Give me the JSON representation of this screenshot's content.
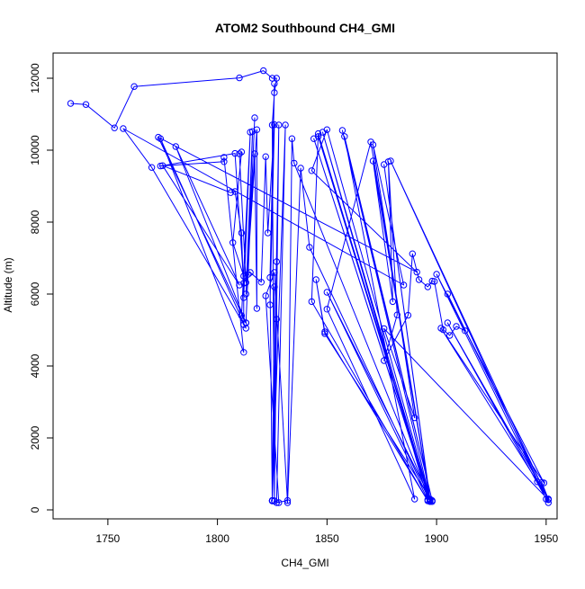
{
  "chart_data": {
    "type": "line",
    "title": "ATOM2 Southbound CH4_GMI",
    "xlabel": "CH4_GMI",
    "ylabel": "Altitude (m)",
    "xlim": [
      1725,
      1955
    ],
    "ylim": [
      -250,
      12700
    ],
    "x_ticks": [
      "1750",
      "1800",
      "1850",
      "1900",
      "1950"
    ],
    "y_ticks": [
      "0",
      "2000",
      "4000",
      "6000",
      "8000",
      "10000",
      "12000"
    ],
    "grid": false,
    "legend": "none",
    "colors": {
      "series": "#0000ff",
      "axis": "#000000",
      "background": "#ffffff"
    },
    "series": [
      {
        "style": "line+circle-markers",
        "points": [
          [
            1733,
            11300
          ],
          [
            1740,
            11270
          ],
          [
            1753,
            10620
          ],
          [
            1762,
            11770
          ],
          [
            1810,
            12010
          ],
          [
            1821,
            12210
          ],
          [
            1825,
            12000
          ],
          [
            1827,
            12000
          ],
          [
            1826,
            11600
          ],
          [
            1825,
            10700
          ],
          [
            1826,
            250
          ],
          [
            1828,
            10700
          ],
          [
            1825,
            260
          ],
          [
            1831,
            10700
          ],
          [
            1827,
            200
          ],
          [
            1832,
            260
          ],
          [
            1834,
            10320
          ],
          [
            1835,
            9640
          ],
          [
            1897,
            260
          ],
          [
            1844,
            10320
          ],
          [
            1897,
            240
          ],
          [
            1846,
            10380
          ],
          [
            1897,
            290
          ],
          [
            1850,
            10570
          ],
          [
            1843,
            9430
          ],
          [
            1891,
            6610
          ],
          [
            1773,
            10360
          ],
          [
            1813,
            5200
          ],
          [
            1781,
            10100
          ],
          [
            1810,
            6250
          ],
          [
            1775,
            9570
          ],
          [
            1806,
            8820
          ],
          [
            1808,
            8850
          ],
          [
            1811,
            7700
          ],
          [
            1812,
            5900
          ],
          [
            1815,
            10500
          ],
          [
            1811,
            5400
          ],
          [
            1813,
            5200
          ],
          [
            1817,
            10900
          ],
          [
            1814,
            6550
          ],
          [
            1816,
            10520
          ],
          [
            1813,
            6000
          ],
          [
            1818,
            10570
          ],
          [
            1818,
            5600
          ],
          [
            1817,
            9900
          ],
          [
            1813,
            6320
          ],
          [
            1810,
            9900
          ],
          [
            1811,
            9950
          ],
          [
            1807,
            7430
          ],
          [
            1812,
            6500
          ],
          [
            1815,
            6600
          ],
          [
            1820,
            6330
          ],
          [
            1822,
            9820
          ],
          [
            1823,
            7700
          ],
          [
            1826,
            10710
          ],
          [
            1824,
            5700
          ],
          [
            1826,
            11850
          ],
          [
            1824,
            6460
          ],
          [
            1825,
            250
          ],
          [
            1826,
            6200
          ],
          [
            1825,
            250
          ],
          [
            1827,
            5300
          ],
          [
            1825,
            260
          ],
          [
            1827,
            6900
          ],
          [
            1826,
            250
          ],
          [
            1828,
            200
          ],
          [
            1822,
            5950
          ],
          [
            1826,
            6600
          ],
          [
            1832,
            200
          ],
          [
            1838,
            9500
          ],
          [
            1842,
            7300
          ],
          [
            1897,
            230
          ],
          [
            1848,
            10500
          ],
          [
            1896,
            280
          ],
          [
            1850,
            6050
          ],
          [
            1898,
            230
          ],
          [
            1849,
            4900
          ],
          [
            1845,
            6400
          ],
          [
            1849,
            4950
          ],
          [
            1896,
            250
          ],
          [
            1843,
            5790
          ],
          [
            1846,
            10460
          ],
          [
            1897,
            280
          ],
          [
            1857,
            10550
          ],
          [
            1898,
            260
          ],
          [
            1858,
            10380
          ],
          [
            1890,
            300
          ],
          [
            1850,
            5580
          ],
          [
            1870,
            10230
          ],
          [
            1897,
            300
          ],
          [
            1876,
            9600
          ],
          [
            1897,
            270
          ],
          [
            1871,
            9700
          ],
          [
            1880,
            5790
          ],
          [
            1878,
            9680
          ],
          [
            1882,
            5420
          ],
          [
            1876,
            4150
          ],
          [
            1887,
            5410
          ],
          [
            1889,
            7120
          ],
          [
            1892,
            6400
          ],
          [
            1896,
            6200
          ],
          [
            1898,
            6360
          ],
          [
            1899,
            6350
          ],
          [
            1903,
            5010
          ],
          [
            1906,
            4850
          ],
          [
            1909,
            5100
          ],
          [
            1913,
            4980
          ],
          [
            1905,
            6000
          ],
          [
            1951,
            300
          ],
          [
            1948,
            760
          ],
          [
            1951,
            200
          ],
          [
            1905,
            5200
          ],
          [
            1951,
            300
          ],
          [
            1946,
            780
          ],
          [
            1902,
            5050
          ],
          [
            1949,
            750
          ],
          [
            1900,
            6550
          ],
          [
            1950,
            300
          ],
          [
            1879,
            9700
          ],
          [
            1951,
            280
          ],
          [
            1876,
            5040
          ],
          [
            1890,
            2560
          ],
          [
            1871,
            10150
          ],
          [
            1885,
            6250
          ],
          [
            1757,
            10600
          ],
          [
            1770,
            9520
          ],
          [
            1813,
            5050
          ],
          [
            1774,
            10320
          ],
          [
            1812,
            4380
          ],
          [
            1803,
            9800
          ],
          [
            1803,
            9680
          ],
          [
            1774,
            9560
          ],
          [
            1808,
            9910
          ],
          [
            1812,
            6300
          ],
          [
            1812,
            5150
          ]
        ]
      }
    ]
  }
}
